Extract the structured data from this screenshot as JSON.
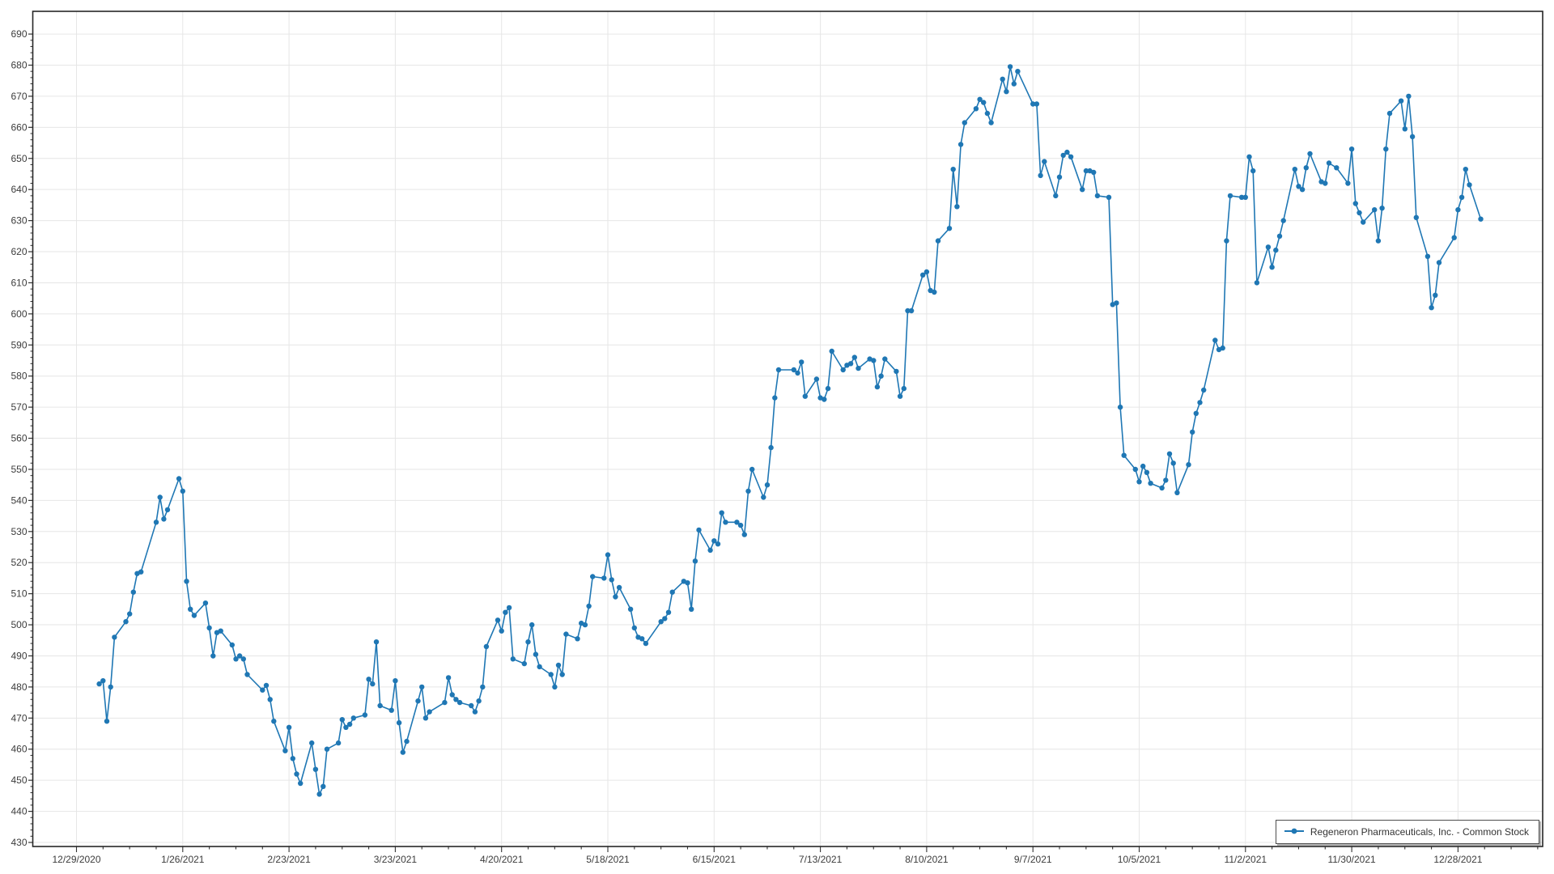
{
  "window": {
    "background": "#FFFFFF"
  },
  "chart_data": {
    "type": "line",
    "title": "",
    "xlabel": "",
    "ylabel": "",
    "legend_position": "bottom-right-inside",
    "grid": true,
    "colors": {
      "line": "#1F77B4",
      "marker": "#1F77B4",
      "grid": "#E6E6E6",
      "axis": "#262626",
      "tick": "#333333",
      "label": "#3C3C3C",
      "legend_border": "#4D4D4D",
      "background": "#FFFFFF"
    },
    "y_axis": {
      "min": 430,
      "max": 690,
      "major_step": 10,
      "minor_step": 2
    },
    "x_axis": {
      "tick_labels": [
        "12/29/2020",
        "1/26/2021",
        "2/23/2021",
        "3/23/2021",
        "4/20/2021",
        "5/18/2021",
        "6/15/2021",
        "7/13/2021",
        "8/10/2021",
        "9/7/2021",
        "10/5/2021",
        "11/2/2021",
        "11/30/2021",
        "12/28/2021"
      ],
      "major_interval_days": 28,
      "minor_interval_days": 7
    },
    "series": [
      {
        "name": "Regeneron Pharmaceuticals, Inc. - Common Stock",
        "color": "#1F77B4",
        "points": [
          [
            "1/4",
            481
          ],
          [
            "1/5",
            482
          ],
          [
            "1/6",
            469
          ],
          [
            "1/7",
            480
          ],
          [
            "1/8",
            496
          ],
          [
            "1/11",
            501
          ],
          [
            "1/12",
            503.5
          ],
          [
            "1/13",
            510.5
          ],
          [
            "1/14",
            516.5
          ],
          [
            "1/15",
            517
          ],
          [
            "1/19",
            533
          ],
          [
            "1/20",
            541
          ],
          [
            "1/21",
            534
          ],
          [
            "1/22",
            537
          ],
          [
            "1/25",
            547
          ],
          [
            "1/26",
            543
          ],
          [
            "1/27",
            514
          ],
          [
            "1/28",
            505
          ],
          [
            "1/29",
            503
          ],
          [
            "2/1",
            507
          ],
          [
            "2/2",
            499
          ],
          [
            "2/3",
            490
          ],
          [
            "2/4",
            497.5
          ],
          [
            "2/5",
            498
          ],
          [
            "2/8",
            493.5
          ],
          [
            "2/9",
            489
          ],
          [
            "2/10",
            490
          ],
          [
            "2/11",
            489
          ],
          [
            "2/12",
            484
          ],
          [
            "2/16",
            479
          ],
          [
            "2/17",
            480.5
          ],
          [
            "2/18",
            476
          ],
          [
            "2/19",
            469
          ],
          [
            "2/22",
            459.5
          ],
          [
            "2/23",
            467
          ],
          [
            "2/24",
            457
          ],
          [
            "2/25",
            452
          ],
          [
            "2/26",
            449
          ],
          [
            "3/1",
            462
          ],
          [
            "3/2",
            453.5
          ],
          [
            "3/3",
            445.5
          ],
          [
            "3/4",
            448
          ],
          [
            "3/5",
            460
          ],
          [
            "3/8",
            462
          ],
          [
            "3/9",
            469.5
          ],
          [
            "3/10",
            467
          ],
          [
            "3/11",
            468
          ],
          [
            "3/12",
            470
          ],
          [
            "3/15",
            471
          ],
          [
            "3/16",
            482.5
          ],
          [
            "3/17",
            481
          ],
          [
            "3/18",
            494.5
          ],
          [
            "3/19",
            474
          ],
          [
            "3/22",
            472.5
          ],
          [
            "3/23",
            482
          ],
          [
            "3/24",
            468.5
          ],
          [
            "3/25",
            459
          ],
          [
            "3/26",
            462.5
          ],
          [
            "3/29",
            475.5
          ],
          [
            "3/30",
            480
          ],
          [
            "3/31",
            470
          ],
          [
            "4/1",
            472
          ],
          [
            "4/5",
            475
          ],
          [
            "4/6",
            483
          ],
          [
            "4/7",
            477.5
          ],
          [
            "4/8",
            476
          ],
          [
            "4/9",
            475
          ],
          [
            "4/12",
            474
          ],
          [
            "4/13",
            472
          ],
          [
            "4/14",
            475.5
          ],
          [
            "4/15",
            480
          ],
          [
            "4/16",
            493
          ],
          [
            "4/19",
            501.5
          ],
          [
            "4/20",
            498
          ],
          [
            "4/21",
            504
          ],
          [
            "4/22",
            505.5
          ],
          [
            "4/23",
            489
          ],
          [
            "4/26",
            487.5
          ],
          [
            "4/27",
            494.5
          ],
          [
            "4/28",
            500
          ],
          [
            "4/29",
            490.5
          ],
          [
            "4/30",
            486.5
          ],
          [
            "5/3",
            484
          ],
          [
            "5/4",
            480
          ],
          [
            "5/5",
            487
          ],
          [
            "5/6",
            484
          ],
          [
            "5/7",
            497
          ],
          [
            "5/10",
            495.5
          ],
          [
            "5/11",
            500.5
          ],
          [
            "5/12",
            500
          ],
          [
            "5/13",
            506
          ],
          [
            "5/14",
            515.5
          ],
          [
            "5/17",
            515
          ],
          [
            "5/18",
            522.5
          ],
          [
            "5/19",
            514.5
          ],
          [
            "5/20",
            509
          ],
          [
            "5/21",
            512
          ],
          [
            "5/24",
            505
          ],
          [
            "5/25",
            499
          ],
          [
            "5/26",
            496
          ],
          [
            "5/27",
            495.5
          ],
          [
            "5/28",
            494
          ],
          [
            "6/1",
            501
          ],
          [
            "6/2",
            502
          ],
          [
            "6/3",
            504
          ],
          [
            "6/4",
            510.5
          ],
          [
            "6/7",
            514
          ],
          [
            "6/8",
            513.5
          ],
          [
            "6/9",
            505
          ],
          [
            "6/10",
            520.5
          ],
          [
            "6/11",
            530.5
          ],
          [
            "6/14",
            524
          ],
          [
            "6/15",
            527
          ],
          [
            "6/16",
            526
          ],
          [
            "6/17",
            536
          ],
          [
            "6/18",
            533
          ],
          [
            "6/21",
            533
          ],
          [
            "6/22",
            532
          ],
          [
            "6/23",
            529
          ],
          [
            "6/24",
            543
          ],
          [
            "6/25",
            550
          ],
          [
            "6/28",
            541
          ],
          [
            "6/29",
            545
          ],
          [
            "6/30",
            557
          ],
          [
            "7/1",
            573
          ],
          [
            "7/2",
            582
          ],
          [
            "7/6",
            582
          ],
          [
            "7/7",
            581
          ],
          [
            "7/8",
            584.5
          ],
          [
            "7/9",
            573.5
          ],
          [
            "7/12",
            579
          ],
          [
            "7/13",
            573
          ],
          [
            "7/14",
            572.5
          ],
          [
            "7/15",
            576
          ],
          [
            "7/16",
            588
          ],
          [
            "7/19",
            582
          ],
          [
            "7/20",
            583.5
          ],
          [
            "7/21",
            584
          ],
          [
            "7/22",
            586
          ],
          [
            "7/23",
            582.5
          ],
          [
            "7/26",
            585.5
          ],
          [
            "7/27",
            585
          ],
          [
            "7/28",
            576.5
          ],
          [
            "7/29",
            580
          ],
          [
            "7/30",
            585.5
          ],
          [
            "8/2",
            581.5
          ],
          [
            "8/3",
            573.5
          ],
          [
            "8/4",
            576
          ],
          [
            "8/5",
            601
          ],
          [
            "8/6",
            601
          ],
          [
            "8/9",
            612.5
          ],
          [
            "8/10",
            613.5
          ],
          [
            "8/11",
            607.5
          ],
          [
            "8/12",
            607
          ],
          [
            "8/13",
            623.5
          ],
          [
            "8/16",
            627.5
          ],
          [
            "8/17",
            646.5
          ],
          [
            "8/18",
            634.5
          ],
          [
            "8/19",
            654.5
          ],
          [
            "8/20",
            661.5
          ],
          [
            "8/23",
            666
          ],
          [
            "8/24",
            669
          ],
          [
            "8/25",
            668
          ],
          [
            "8/26",
            664.5
          ],
          [
            "8/27",
            661.5
          ],
          [
            "8/30",
            675.5
          ],
          [
            "8/31",
            671.5
          ],
          [
            "9/1",
            679.5
          ],
          [
            "9/2",
            674
          ],
          [
            "9/3",
            678
          ],
          [
            "9/7",
            667.5
          ],
          [
            "9/8",
            667.5
          ],
          [
            "9/9",
            644.5
          ],
          [
            "9/10",
            649
          ],
          [
            "9/13",
            638
          ],
          [
            "9/14",
            644
          ],
          [
            "9/15",
            651
          ],
          [
            "9/16",
            652
          ],
          [
            "9/17",
            650.5
          ],
          [
            "9/20",
            640
          ],
          [
            "9/21",
            646
          ],
          [
            "9/22",
            646
          ],
          [
            "9/23",
            645.5
          ],
          [
            "9/24",
            638
          ],
          [
            "9/27",
            637.5
          ],
          [
            "9/28",
            603
          ],
          [
            "9/29",
            603.5
          ],
          [
            "9/30",
            570
          ],
          [
            "10/1",
            554.5
          ],
          [
            "10/4",
            550
          ],
          [
            "10/5",
            546
          ],
          [
            "10/6",
            551
          ],
          [
            "10/7",
            549
          ],
          [
            "10/8",
            545.5
          ],
          [
            "10/11",
            544
          ],
          [
            "10/12",
            546.5
          ],
          [
            "10/13",
            555
          ],
          [
            "10/14",
            552
          ],
          [
            "10/15",
            542.5
          ],
          [
            "10/18",
            551.5
          ],
          [
            "10/19",
            562
          ],
          [
            "10/20",
            568
          ],
          [
            "10/21",
            571.5
          ],
          [
            "10/22",
            575.5
          ],
          [
            "10/25",
            591.5
          ],
          [
            "10/26",
            588.5
          ],
          [
            "10/27",
            589
          ],
          [
            "10/28",
            623.5
          ],
          [
            "10/29",
            638
          ],
          [
            "11/1",
            637.5
          ],
          [
            "11/2",
            637.5
          ],
          [
            "11/3",
            650.5
          ],
          [
            "11/4",
            646
          ],
          [
            "11/5",
            610
          ],
          [
            "11/8",
            621.5
          ],
          [
            "11/9",
            615
          ],
          [
            "11/10",
            620.5
          ],
          [
            "11/11",
            625
          ],
          [
            "11/12",
            630
          ],
          [
            "11/15",
            646.5
          ],
          [
            "11/16",
            641
          ],
          [
            "11/17",
            640
          ],
          [
            "11/18",
            647
          ],
          [
            "11/19",
            651.5
          ],
          [
            "11/22",
            642.5
          ],
          [
            "11/23",
            642
          ],
          [
            "11/24",
            648.5
          ],
          [
            "11/26",
            647
          ],
          [
            "11/29",
            642
          ],
          [
            "11/30",
            653
          ],
          [
            "12/1",
            635.5
          ],
          [
            "12/2",
            632.5
          ],
          [
            "12/3",
            629.5
          ],
          [
            "12/6",
            633.5
          ],
          [
            "12/7",
            623.5
          ],
          [
            "12/8",
            634
          ],
          [
            "12/9",
            653
          ],
          [
            "12/10",
            664.5
          ],
          [
            "12/13",
            668.5
          ],
          [
            "12/14",
            659.5
          ],
          [
            "12/15",
            670
          ],
          [
            "12/16",
            657
          ],
          [
            "12/17",
            631
          ],
          [
            "12/20",
            618.5
          ],
          [
            "12/21",
            602
          ],
          [
            "12/22",
            606
          ],
          [
            "12/23",
            616.5
          ],
          [
            "12/27",
            624.5
          ],
          [
            "12/28",
            633.5
          ],
          [
            "12/29",
            637.5
          ],
          [
            "12/30",
            646.5
          ],
          [
            "12/31",
            641.5
          ],
          [
            "1/3",
            630.5
          ]
        ]
      }
    ]
  }
}
